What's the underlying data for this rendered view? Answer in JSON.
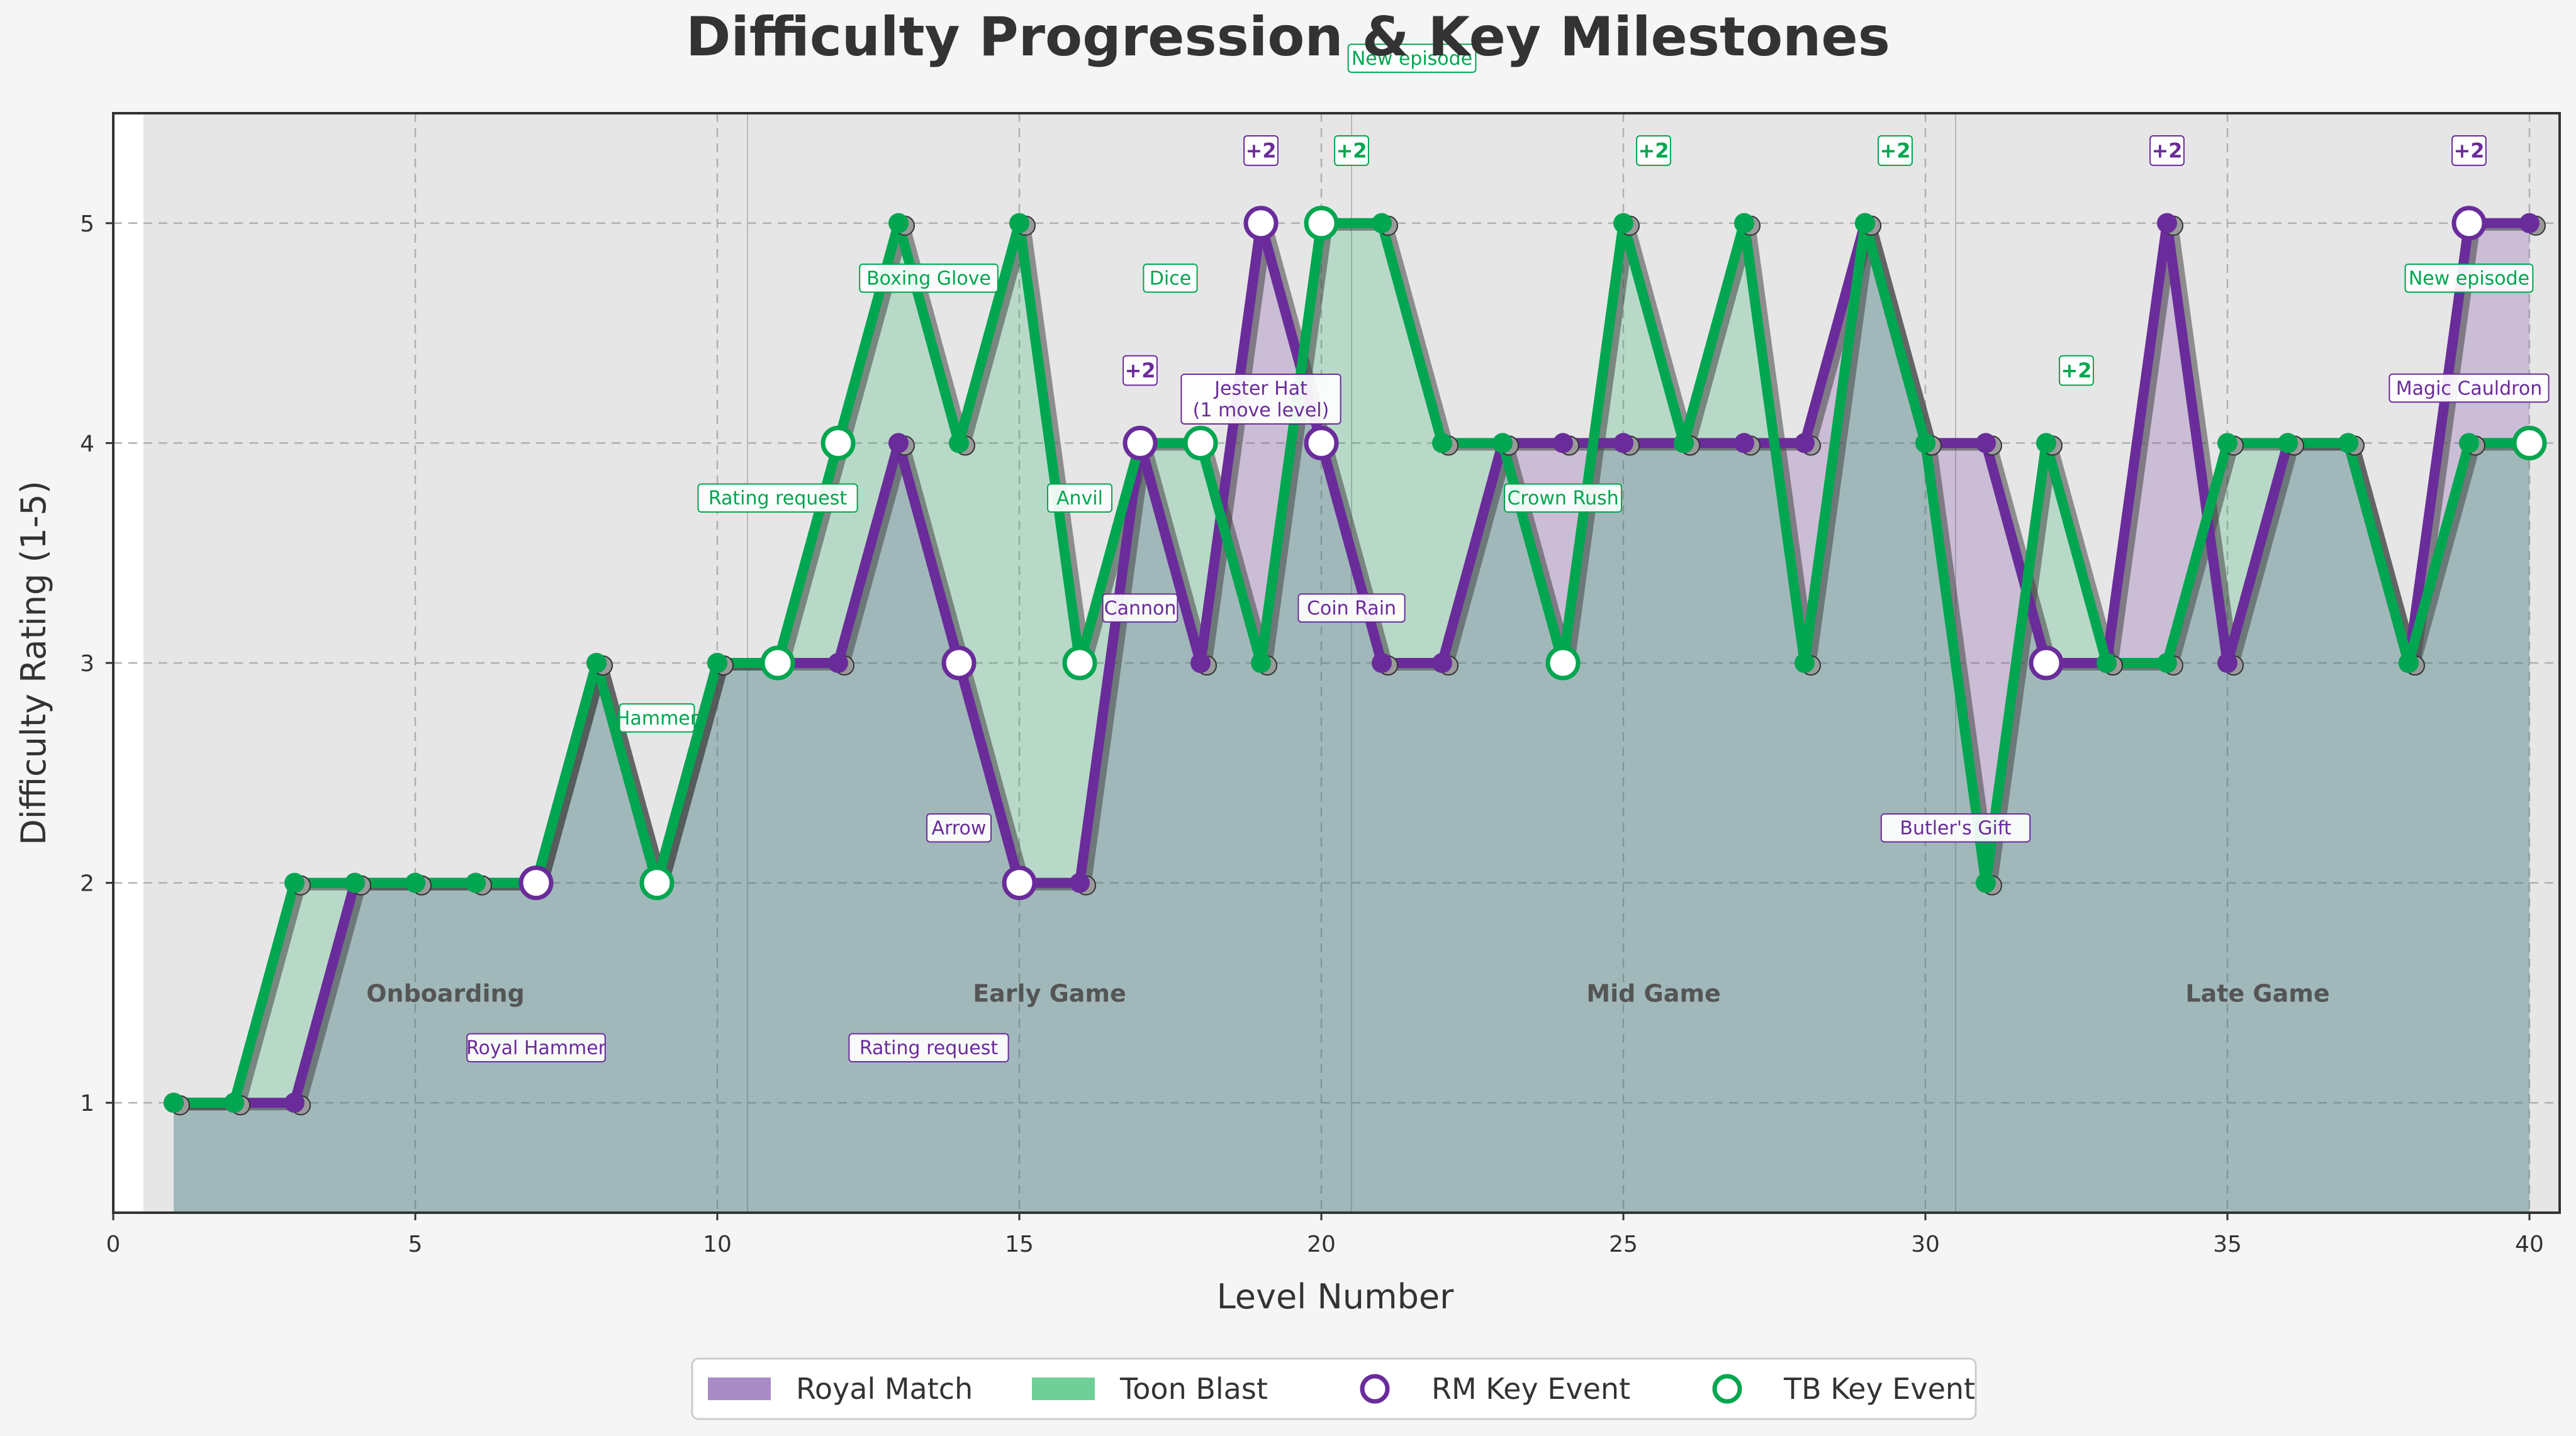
{
  "chart_data": {
    "type": "line",
    "title": "Difficulty Progression & Key Milestones",
    "xlabel": "Level Number",
    "ylabel": "Difficulty Rating (1-5)",
    "xlim": [
      0,
      40.5
    ],
    "ylim": [
      0.5,
      5.5
    ],
    "xticks": [
      0,
      5,
      10,
      15,
      20,
      25,
      30,
      35,
      40
    ],
    "yticks": [
      1,
      2,
      3,
      4,
      5
    ],
    "grid": true,
    "legend_position": "bottom-center",
    "x": [
      1,
      2,
      3,
      4,
      5,
      6,
      7,
      8,
      9,
      10,
      11,
      12,
      13,
      14,
      15,
      16,
      17,
      18,
      19,
      20,
      21,
      22,
      23,
      24,
      25,
      26,
      27,
      28,
      29,
      30,
      31,
      32,
      33,
      34,
      35,
      36,
      37,
      38,
      39,
      40
    ],
    "series": [
      {
        "name": "Royal Match",
        "color": "#6a2c9a",
        "values": [
          1,
          1,
          1,
          2,
          2,
          2,
          2,
          3,
          2,
          3,
          3,
          3,
          4,
          3,
          2,
          2,
          4,
          3,
          5,
          4,
          3,
          3,
          4,
          4,
          4,
          4,
          4,
          4,
          5,
          4,
          4,
          3,
          3,
          5,
          3,
          4,
          4,
          3,
          5,
          5
        ]
      },
      {
        "name": "Toon Blast",
        "color": "#00a650",
        "values": [
          1,
          1,
          2,
          2,
          2,
          2,
          2,
          3,
          2,
          3,
          3,
          4,
          5,
          4,
          5,
          3,
          4,
          4,
          3,
          5,
          5,
          4,
          4,
          3,
          5,
          4,
          5,
          3,
          5,
          4,
          2,
          4,
          3,
          3,
          4,
          4,
          4,
          3,
          4,
          4
        ]
      }
    ],
    "phases": [
      {
        "label": "Onboarding",
        "from": 0.5,
        "to": 10.5,
        "center": 5.5
      },
      {
        "label": "Early Game",
        "from": 10.5,
        "to": 20.5,
        "center": 15.5
      },
      {
        "label": "Mid Game",
        "from": 20.5,
        "to": 30.5,
        "center": 25.5
      },
      {
        "label": "Late Game",
        "from": 30.5,
        "to": 40.5,
        "center": 35.5
      }
    ],
    "rm_events": [
      {
        "level": 7,
        "text": "Royal Hammer",
        "lx": 7,
        "ly": 1.25
      },
      {
        "level": 14,
        "text": "Arrow",
        "lx": 14,
        "ly": 2.25
      },
      {
        "level": 15,
        "text": "Rating request",
        "lx": 13.5,
        "ly": 1.25
      },
      {
        "level": 17,
        "text": "Cannon",
        "lx": 17,
        "ly": 3.25
      },
      {
        "level": 19,
        "text": "Jester Hat\n(1 move level)",
        "lx": 19,
        "ly": 4.2
      },
      {
        "level": 20,
        "text": "Coin Rain",
        "lx": 20.5,
        "ly": 3.25
      },
      {
        "level": 32,
        "text": "Butler's Gift",
        "lx": 30.5,
        "ly": 2.25
      },
      {
        "level": 39,
        "text": "Magic Cauldron",
        "lx": 39,
        "ly": 4.25
      }
    ],
    "tb_events": [
      {
        "level": 9,
        "text": "Hammer",
        "lx": 9,
        "ly": 2.75
      },
      {
        "level": 11,
        "text": "Rating request",
        "lx": 11,
        "ly": 3.75
      },
      {
        "level": 12,
        "text": "Boxing Glove",
        "lx": 13.5,
        "ly": 4.75
      },
      {
        "level": 16,
        "text": "Anvil",
        "lx": 16,
        "ly": 3.75
      },
      {
        "level": 18,
        "text": "Dice",
        "lx": 17.5,
        "ly": 4.75
      },
      {
        "level": 20,
        "text": "New episode",
        "lx": 21.5,
        "ly": 5.75
      },
      {
        "level": 24,
        "text": "Crown Rush",
        "lx": 24,
        "ly": 3.75
      },
      {
        "level": 40,
        "text": "New episode",
        "lx": 39,
        "ly": 4.75
      }
    ],
    "rm_badges": [
      {
        "text": "+2",
        "x": 17,
        "y": 4.33
      },
      {
        "text": "+2",
        "x": 19,
        "y": 5.33
      },
      {
        "text": "+2",
        "x": 34,
        "y": 5.33
      },
      {
        "text": "+2",
        "x": 39,
        "y": 5.33
      }
    ],
    "tb_badges": [
      {
        "text": "+2",
        "x": 20.5,
        "y": 5.33
      },
      {
        "text": "+2",
        "x": 25.5,
        "y": 5.33
      },
      {
        "text": "+2",
        "x": 29.5,
        "y": 5.33
      },
      {
        "text": "+2",
        "x": 32.5,
        "y": 4.33
      }
    ],
    "legend": [
      {
        "label": "Royal Match",
        "kind": "patch",
        "color": "#a98bc6"
      },
      {
        "label": "Toon Blast",
        "kind": "patch",
        "color": "#6fcf97"
      },
      {
        "label": "RM Key Event",
        "kind": "marker",
        "color": "#6a2c9a"
      },
      {
        "label": "TB Key Event",
        "kind": "marker",
        "color": "#00a650"
      }
    ]
  }
}
